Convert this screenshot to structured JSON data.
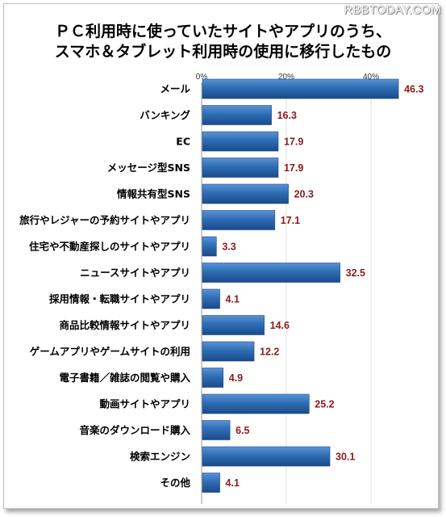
{
  "watermark": "RBBTODAY.COM",
  "chart_data": {
    "type": "bar",
    "orientation": "horizontal",
    "title_lines": [
      "ＰＣ利用時に使っていたサイトやアプリのうち、",
      "スマホ＆タブレット利用時の使用に移行したもの"
    ],
    "categories": [
      "メール",
      "バンキング",
      "EC",
      "メッセージ型SNS",
      "情報共有型SNS",
      "旅行やレジャーの予約サイトやアプリ",
      "住宅や不動産探しのサイトやアプリ",
      "ニュースサイトやアプリ",
      "採用情報・転職サイトやアプリ",
      "商品比較情報サイトやアプリ",
      "ゲームアプリやゲームサイトの利用",
      "電子書籍／雑誌の閲覧や購入",
      "動画サイトやアプリ",
      "音楽のダウンロード購入",
      "検索エンジン",
      "その他"
    ],
    "values": [
      46.3,
      16.3,
      17.9,
      17.9,
      20.3,
      17.1,
      3.3,
      32.5,
      4.1,
      14.6,
      12.2,
      4.9,
      25.2,
      6.5,
      30.1,
      4.1
    ],
    "value_labels": [
      "46.3",
      "16.3",
      "17.9",
      "17.9",
      "20.3",
      "17.1",
      "3.3",
      "32.5",
      "4.1",
      "14.6",
      "12.2",
      "4.9",
      "25.2",
      "6.5",
      "30.1",
      "4.1"
    ],
    "x_ticks": [
      "0%",
      "20%",
      "40%"
    ],
    "x_tick_values": [
      0,
      20,
      40
    ],
    "xlim": [
      0,
      50
    ],
    "grid": true,
    "legend": "none",
    "bar_color": "#2e6db4",
    "bar_color_light": "#5a92d6",
    "bar_color_dark": "#1b4a8a",
    "value_label_color": "#8b1a1a"
  }
}
